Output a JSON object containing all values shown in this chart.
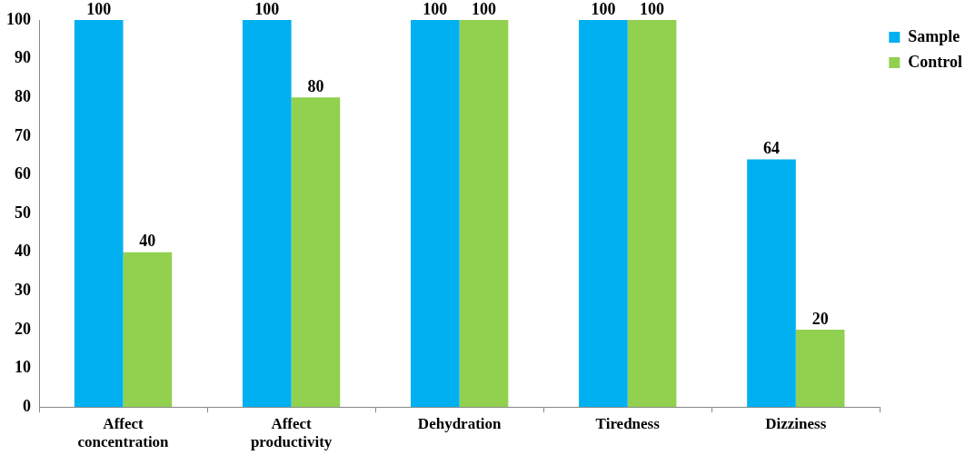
{
  "chart_data": {
    "type": "bar",
    "categories": [
      "Affect concentration",
      "Affect productivity",
      "Dehydration",
      "Tiredness",
      "Dizziness"
    ],
    "series": [
      {
        "name": "Sample",
        "color": "#00b0f0",
        "values": [
          100,
          100,
          100,
          100,
          64
        ]
      },
      {
        "name": "Control",
        "color": "#92d050",
        "values": [
          40,
          80,
          100,
          100,
          20
        ]
      }
    ],
    "ylim": [
      0,
      100
    ],
    "yticks": [
      0,
      10,
      20,
      30,
      40,
      50,
      60,
      70,
      80,
      90,
      100
    ],
    "grid": false,
    "legend": "top right",
    "data_labels": true
  }
}
